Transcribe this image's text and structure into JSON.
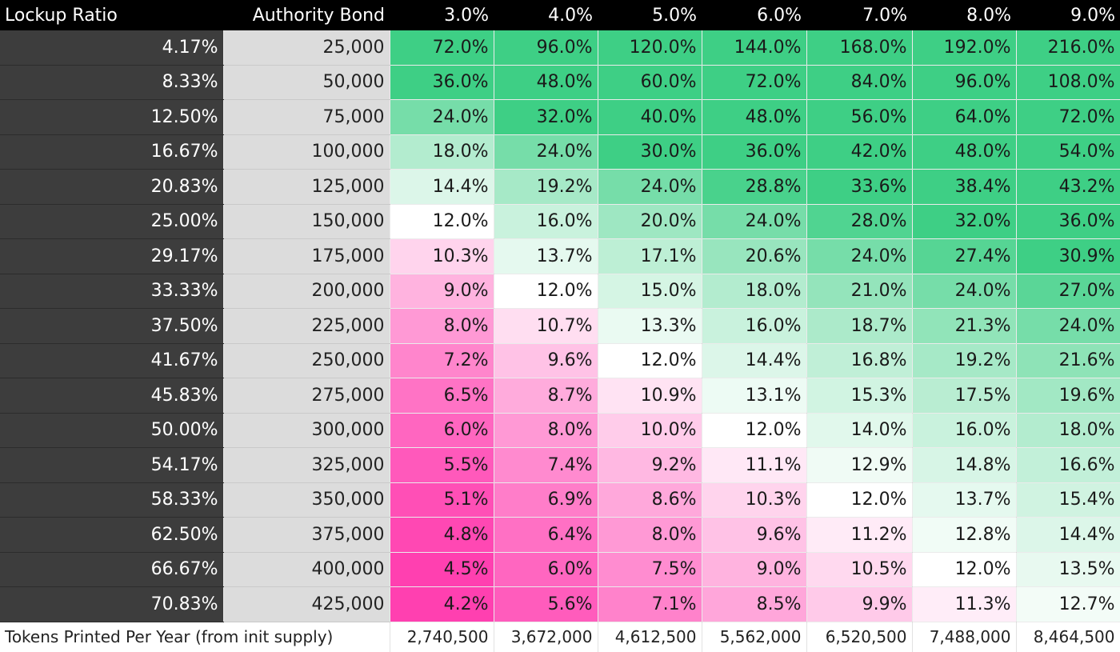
{
  "table": {
    "headers": [
      "Lockup Ratio",
      "Authority Bond",
      "3.0%",
      "4.0%",
      "5.0%",
      "6.0%",
      "7.0%",
      "8.0%",
      "9.0%"
    ],
    "rows": [
      {
        "ratio": "4.17%",
        "bond": "25,000",
        "values": [
          "72.0%",
          "96.0%",
          "120.0%",
          "144.0%",
          "168.0%",
          "192.0%",
          "216.0%"
        ]
      },
      {
        "ratio": "8.33%",
        "bond": "50,000",
        "values": [
          "36.0%",
          "48.0%",
          "60.0%",
          "72.0%",
          "84.0%",
          "96.0%",
          "108.0%"
        ]
      },
      {
        "ratio": "12.50%",
        "bond": "75,000",
        "values": [
          "24.0%",
          "32.0%",
          "40.0%",
          "48.0%",
          "56.0%",
          "64.0%",
          "72.0%"
        ]
      },
      {
        "ratio": "16.67%",
        "bond": "100,000",
        "values": [
          "18.0%",
          "24.0%",
          "30.0%",
          "36.0%",
          "42.0%",
          "48.0%",
          "54.0%"
        ]
      },
      {
        "ratio": "20.83%",
        "bond": "125,000",
        "values": [
          "14.4%",
          "19.2%",
          "24.0%",
          "28.8%",
          "33.6%",
          "38.4%",
          "43.2%"
        ]
      },
      {
        "ratio": "25.00%",
        "bond": "150,000",
        "values": [
          "12.0%",
          "16.0%",
          "20.0%",
          "24.0%",
          "28.0%",
          "32.0%",
          "36.0%"
        ]
      },
      {
        "ratio": "29.17%",
        "bond": "175,000",
        "values": [
          "10.3%",
          "13.7%",
          "17.1%",
          "20.6%",
          "24.0%",
          "27.4%",
          "30.9%"
        ]
      },
      {
        "ratio": "33.33%",
        "bond": "200,000",
        "values": [
          "9.0%",
          "12.0%",
          "15.0%",
          "18.0%",
          "21.0%",
          "24.0%",
          "27.0%"
        ]
      },
      {
        "ratio": "37.50%",
        "bond": "225,000",
        "values": [
          "8.0%",
          "10.7%",
          "13.3%",
          "16.0%",
          "18.7%",
          "21.3%",
          "24.0%"
        ]
      },
      {
        "ratio": "41.67%",
        "bond": "250,000",
        "values": [
          "7.2%",
          "9.6%",
          "12.0%",
          "14.4%",
          "16.8%",
          "19.2%",
          "21.6%"
        ]
      },
      {
        "ratio": "45.83%",
        "bond": "275,000",
        "values": [
          "6.5%",
          "8.7%",
          "10.9%",
          "13.1%",
          "15.3%",
          "17.5%",
          "19.6%"
        ]
      },
      {
        "ratio": "50.00%",
        "bond": "300,000",
        "values": [
          "6.0%",
          "8.0%",
          "10.0%",
          "12.0%",
          "14.0%",
          "16.0%",
          "18.0%"
        ]
      },
      {
        "ratio": "54.17%",
        "bond": "325,000",
        "values": [
          "5.5%",
          "7.4%",
          "9.2%",
          "11.1%",
          "12.9%",
          "14.8%",
          "16.6%"
        ]
      },
      {
        "ratio": "58.33%",
        "bond": "350,000",
        "values": [
          "5.1%",
          "6.9%",
          "8.6%",
          "10.3%",
          "12.0%",
          "13.7%",
          "15.4%"
        ]
      },
      {
        "ratio": "62.50%",
        "bond": "375,000",
        "values": [
          "4.8%",
          "6.4%",
          "8.0%",
          "9.6%",
          "11.2%",
          "12.8%",
          "14.4%"
        ]
      },
      {
        "ratio": "66.67%",
        "bond": "400,000",
        "values": [
          "4.5%",
          "6.0%",
          "7.5%",
          "9.0%",
          "10.5%",
          "12.0%",
          "13.5%"
        ]
      },
      {
        "ratio": "70.83%",
        "bond": "425,000",
        "values": [
          "4.2%",
          "5.6%",
          "7.1%",
          "8.5%",
          "9.9%",
          "11.3%",
          "12.7%"
        ]
      }
    ],
    "footer": {
      "label": "Tokens Printed Per Year (from init supply)",
      "values": [
        "2,740,500",
        "3,672,000",
        "4,612,500",
        "5,562,000",
        "6,520,500",
        "7,488,000",
        "8,464,500"
      ]
    }
  },
  "colors": {
    "header_bg": "#000000",
    "ratio_col_bg": "#3d3d3d",
    "bond_col_bg": "#dcdcdc",
    "high_value": "#3ecf85",
    "midpoint": "#ffffff",
    "low_value": "#ff40b0"
  }
}
